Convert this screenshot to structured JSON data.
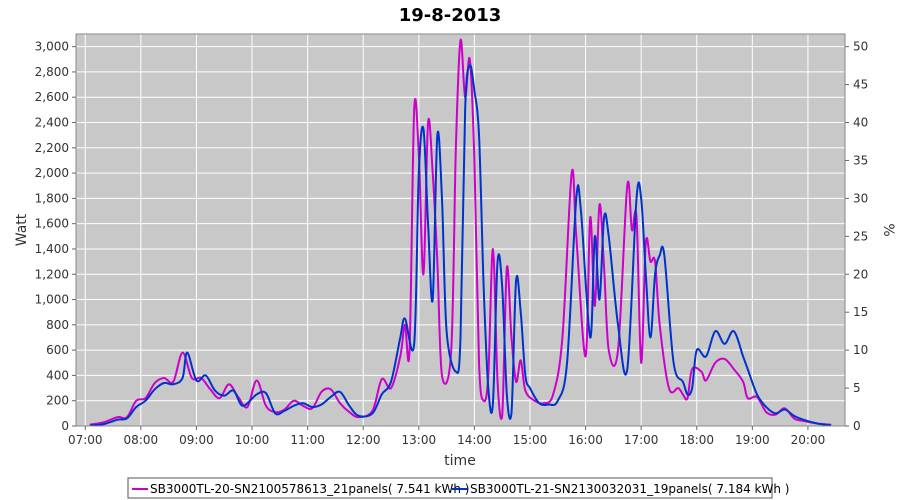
{
  "chart_data": {
    "type": "line",
    "title": "19-8-2013",
    "xlabel": "time",
    "ylabel": "Watt",
    "y2label": "%",
    "ylim": [
      0,
      3100
    ],
    "y2lim": [
      0,
      51.67
    ],
    "xlim": [
      "06:50",
      "20:40"
    ],
    "grid": true,
    "legend_position": "bottom",
    "x_ticks": [
      "07:00",
      "08:00",
      "09:00",
      "10:00",
      "11:00",
      "12:00",
      "13:00",
      "14:00",
      "15:00",
      "16:00",
      "17:00",
      "18:00",
      "19:00",
      "20:00"
    ],
    "y_ticks": [
      "0",
      "200",
      "400",
      "600",
      "800",
      "1,000",
      "1,200",
      "1,400",
      "1,600",
      "1,800",
      "2,000",
      "2,200",
      "2,400",
      "2,600",
      "2,800",
      "3,000"
    ],
    "y2_ticks": [
      "0",
      "5",
      "10",
      "15",
      "20",
      "25",
      "30",
      "35",
      "40",
      "45",
      "50"
    ],
    "colors": {
      "plot_bg": "#c8c8c8",
      "grid": "#ffffff",
      "series1": "#cc00cc",
      "series2": "#0033cc"
    },
    "series": [
      {
        "name": "SB3000TL-20-SN2100578613_21panels( 7.541 kWh )",
        "color": "#cc00cc",
        "points": [
          [
            "07:05",
            10
          ],
          [
            "07:20",
            30
          ],
          [
            "07:35",
            70
          ],
          [
            "07:45",
            70
          ],
          [
            "07:55",
            200
          ],
          [
            "08:05",
            220
          ],
          [
            "08:15",
            340
          ],
          [
            "08:25",
            380
          ],
          [
            "08:35",
            350
          ],
          [
            "08:45",
            580
          ],
          [
            "08:55",
            380
          ],
          [
            "09:05",
            380
          ],
          [
            "09:15",
            290
          ],
          [
            "09:25",
            220
          ],
          [
            "09:35",
            330
          ],
          [
            "09:45",
            230
          ],
          [
            "09:55",
            150
          ],
          [
            "10:05",
            360
          ],
          [
            "10:15",
            160
          ],
          [
            "10:25",
            110
          ],
          [
            "10:35",
            130
          ],
          [
            "10:45",
            200
          ],
          [
            "10:55",
            160
          ],
          [
            "11:05",
            140
          ],
          [
            "11:15",
            270
          ],
          [
            "11:25",
            290
          ],
          [
            "11:35",
            180
          ],
          [
            "11:45",
            110
          ],
          [
            "11:55",
            70
          ],
          [
            "12:10",
            120
          ],
          [
            "12:20",
            370
          ],
          [
            "12:30",
            300
          ],
          [
            "12:40",
            550
          ],
          [
            "12:45",
            800
          ],
          [
            "12:50",
            600
          ],
          [
            "12:55",
            2500
          ],
          [
            "13:00",
            2150
          ],
          [
            "13:05",
            1200
          ],
          [
            "13:10",
            2400
          ],
          [
            "13:15",
            2000
          ],
          [
            "13:20",
            1300
          ],
          [
            "13:25",
            400
          ],
          [
            "13:35",
            600
          ],
          [
            "13:40",
            2200
          ],
          [
            "13:45",
            3050
          ],
          [
            "13:50",
            2600
          ],
          [
            "13:55",
            2900
          ],
          [
            "14:00",
            2100
          ],
          [
            "14:05",
            500
          ],
          [
            "14:10",
            200
          ],
          [
            "14:15",
            400
          ],
          [
            "14:20",
            1400
          ],
          [
            "14:25",
            350
          ],
          [
            "14:30",
            80
          ],
          [
            "14:35",
            1250
          ],
          [
            "14:40",
            700
          ],
          [
            "14:45",
            350
          ],
          [
            "14:50",
            520
          ],
          [
            "14:55",
            280
          ],
          [
            "15:05",
            200
          ],
          [
            "15:15",
            180
          ],
          [
            "15:25",
            250
          ],
          [
            "15:35",
            700
          ],
          [
            "15:45",
            2000
          ],
          [
            "15:50",
            1500
          ],
          [
            "16:00",
            550
          ],
          [
            "16:05",
            1650
          ],
          [
            "16:10",
            950
          ],
          [
            "16:15",
            1750
          ],
          [
            "16:20",
            1250
          ],
          [
            "16:25",
            600
          ],
          [
            "16:35",
            600
          ],
          [
            "16:45",
            1900
          ],
          [
            "16:50",
            1550
          ],
          [
            "16:55",
            1650
          ],
          [
            "17:00",
            500
          ],
          [
            "17:05",
            1450
          ],
          [
            "17:10",
            1300
          ],
          [
            "17:15",
            1300
          ],
          [
            "17:20",
            800
          ],
          [
            "17:30",
            300
          ],
          [
            "17:40",
            300
          ],
          [
            "17:45",
            250
          ],
          [
            "17:50",
            220
          ],
          [
            "17:55",
            450
          ],
          [
            "18:05",
            430
          ],
          [
            "18:10",
            360
          ],
          [
            "18:20",
            500
          ],
          [
            "18:30",
            530
          ],
          [
            "18:40",
            450
          ],
          [
            "18:50",
            350
          ],
          [
            "18:55",
            220
          ],
          [
            "19:05",
            230
          ],
          [
            "19:15",
            110
          ],
          [
            "19:25",
            90
          ],
          [
            "19:35",
            140
          ],
          [
            "19:45",
            60
          ],
          [
            "19:55",
            40
          ],
          [
            "20:10",
            20
          ],
          [
            "20:25",
            10
          ]
        ]
      },
      {
        "name": "SB3000TL-21-SN2130032031_19panels( 7.184 kWh )",
        "color": "#0033cc",
        "points": [
          [
            "07:05",
            5
          ],
          [
            "07:20",
            15
          ],
          [
            "07:35",
            50
          ],
          [
            "07:45",
            60
          ],
          [
            "07:55",
            150
          ],
          [
            "08:05",
            200
          ],
          [
            "08:15",
            290
          ],
          [
            "08:25",
            340
          ],
          [
            "08:35",
            330
          ],
          [
            "08:45",
            380
          ],
          [
            "08:50",
            580
          ],
          [
            "09:00",
            360
          ],
          [
            "09:10",
            400
          ],
          [
            "09:20",
            280
          ],
          [
            "09:30",
            240
          ],
          [
            "09:40",
            280
          ],
          [
            "09:50",
            160
          ],
          [
            "10:05",
            250
          ],
          [
            "10:15",
            260
          ],
          [
            "10:25",
            100
          ],
          [
            "10:35",
            120
          ],
          [
            "10:45",
            160
          ],
          [
            "10:55",
            180
          ],
          [
            "11:05",
            150
          ],
          [
            "11:15",
            170
          ],
          [
            "11:25",
            230
          ],
          [
            "11:35",
            270
          ],
          [
            "11:45",
            160
          ],
          [
            "11:55",
            80
          ],
          [
            "12:10",
            100
          ],
          [
            "12:20",
            250
          ],
          [
            "12:30",
            350
          ],
          [
            "12:40",
            700
          ],
          [
            "12:45",
            850
          ],
          [
            "12:55",
            650
          ],
          [
            "13:00",
            2000
          ],
          [
            "13:05",
            2350
          ],
          [
            "13:10",
            1600
          ],
          [
            "13:15",
            1000
          ],
          [
            "13:20",
            2300
          ],
          [
            "13:25",
            1800
          ],
          [
            "13:30",
            750
          ],
          [
            "13:40",
            430
          ],
          [
            "13:45",
            700
          ],
          [
            "13:50",
            2500
          ],
          [
            "13:55",
            2850
          ],
          [
            "14:00",
            2650
          ],
          [
            "14:05",
            2300
          ],
          [
            "14:10",
            1100
          ],
          [
            "14:15",
            300
          ],
          [
            "14:20",
            180
          ],
          [
            "14:25",
            1300
          ],
          [
            "14:30",
            1100
          ],
          [
            "14:35",
            250
          ],
          [
            "14:40",
            100
          ],
          [
            "14:45",
            1150
          ],
          [
            "14:50",
            900
          ],
          [
            "14:55",
            400
          ],
          [
            "15:00",
            300
          ],
          [
            "15:10",
            180
          ],
          [
            "15:20",
            170
          ],
          [
            "15:30",
            200
          ],
          [
            "15:40",
            500
          ],
          [
            "15:50",
            1800
          ],
          [
            "15:55",
            1700
          ],
          [
            "16:05",
            700
          ],
          [
            "16:10",
            1500
          ],
          [
            "16:15",
            1000
          ],
          [
            "16:20",
            1650
          ],
          [
            "16:25",
            1500
          ],
          [
            "16:35",
            800
          ],
          [
            "16:45",
            450
          ],
          [
            "16:55",
            1800
          ],
          [
            "17:00",
            1800
          ],
          [
            "17:05",
            1200
          ],
          [
            "17:10",
            700
          ],
          [
            "17:15",
            1200
          ],
          [
            "17:20",
            1350
          ],
          [
            "17:25",
            1350
          ],
          [
            "17:35",
            500
          ],
          [
            "17:45",
            350
          ],
          [
            "17:50",
            250
          ],
          [
            "17:55",
            300
          ],
          [
            "18:00",
            600
          ],
          [
            "18:10",
            550
          ],
          [
            "18:20",
            750
          ],
          [
            "18:30",
            650
          ],
          [
            "18:40",
            750
          ],
          [
            "18:50",
            550
          ],
          [
            "18:55",
            450
          ],
          [
            "19:05",
            250
          ],
          [
            "19:15",
            150
          ],
          [
            "19:25",
            100
          ],
          [
            "19:35",
            130
          ],
          [
            "19:45",
            80
          ],
          [
            "19:55",
            50
          ],
          [
            "20:10",
            20
          ],
          [
            "20:25",
            5
          ]
        ]
      }
    ]
  }
}
